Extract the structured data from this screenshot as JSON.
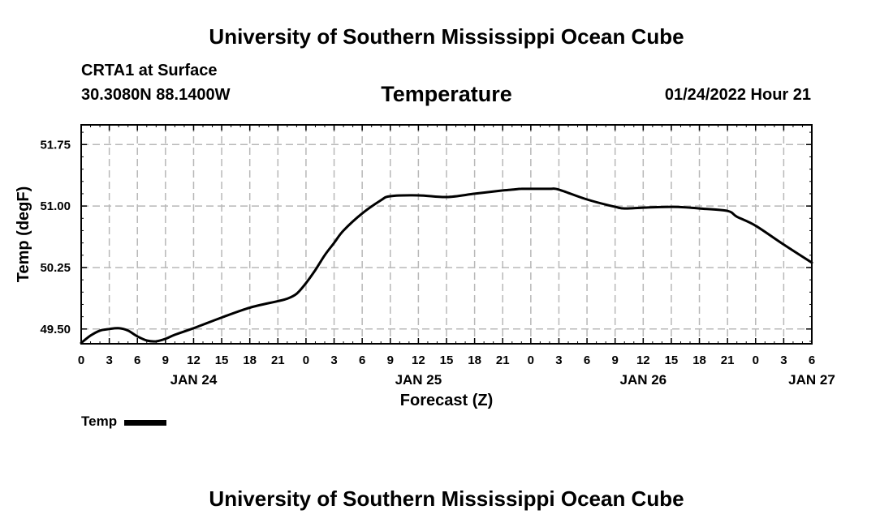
{
  "header": {
    "main_title": "University of Southern Mississippi Ocean Cube",
    "station": "CRTA1 at Surface",
    "coords": "30.3080N  88.1400W",
    "variable": "Temperature",
    "datetime": "01/24/2022 Hour 21"
  },
  "footer": {
    "title": "University of Southern Mississippi Ocean Cube"
  },
  "legend": {
    "label": "Temp",
    "color": "#000000"
  },
  "chart_data": {
    "type": "line",
    "title": "Temperature",
    "xlabel": "Forecast (Z)",
    "ylabel": "Temp (degF)",
    "xlim": [
      0,
      78
    ],
    "ylim": [
      49.32,
      51.99
    ],
    "x_tick_step_hours": 3,
    "x_tick_labels": [
      "0",
      "3",
      "6",
      "9",
      "12",
      "15",
      "18",
      "21",
      "0",
      "3",
      "6",
      "9",
      "12",
      "15",
      "18",
      "21",
      "0",
      "3",
      "6",
      "9",
      "12",
      "15",
      "18",
      "21",
      "0",
      "3",
      "6"
    ],
    "y_ticks": [
      49.5,
      50.25,
      51.0,
      51.75
    ],
    "y_tick_labels": [
      "49.50",
      "50.25",
      "51.00",
      "51.75"
    ],
    "day_labels": [
      {
        "label": "JAN 24",
        "hour": 12
      },
      {
        "label": "JAN 25",
        "hour": 36
      },
      {
        "label": "JAN 26",
        "hour": 60
      },
      {
        "label": "JAN 27",
        "hour": 78
      }
    ],
    "grid": true,
    "series": [
      {
        "name": "Temp",
        "color": "#000000",
        "x": [
          0,
          1,
          2,
          3,
          4,
          5,
          6,
          7,
          8,
          9,
          10,
          12,
          15,
          18,
          21,
          22,
          23,
          24,
          25,
          26,
          27,
          28,
          30,
          32,
          33,
          36,
          39,
          42,
          45,
          46,
          47,
          48,
          50,
          51,
          54,
          57,
          58,
          60,
          63,
          65,
          66,
          69,
          70,
          72,
          75,
          78
        ],
        "values": [
          49.33,
          49.42,
          49.48,
          49.5,
          49.51,
          49.48,
          49.41,
          49.36,
          49.35,
          49.38,
          49.43,
          49.51,
          49.64,
          49.76,
          49.84,
          49.87,
          49.93,
          50.06,
          50.22,
          50.4,
          50.55,
          50.7,
          50.91,
          51.07,
          51.12,
          51.13,
          51.11,
          51.15,
          51.19,
          51.2,
          51.21,
          51.21,
          51.21,
          51.2,
          51.08,
          50.99,
          50.97,
          50.98,
          50.99,
          50.98,
          50.97,
          50.94,
          50.87,
          50.76,
          50.53,
          50.31
        ]
      }
    ]
  }
}
